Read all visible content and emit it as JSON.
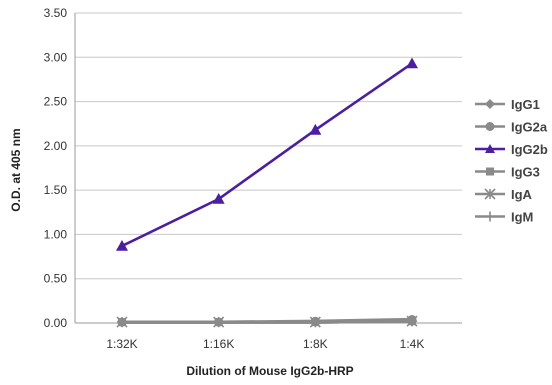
{
  "chart_data": {
    "type": "line",
    "title": "",
    "xlabel": "Dilution of Mouse IgG2b-HRP",
    "ylabel": "O.D. at 405 nm",
    "categories": [
      "1:32K",
      "1:16K",
      "1:8K",
      "1:4K"
    ],
    "ylim": [
      0,
      3.5
    ],
    "yticks": [
      "0.00",
      "0.50",
      "1.00",
      "1.50",
      "2.00",
      "2.50",
      "3.00",
      "3.50"
    ],
    "grid": "horizontal",
    "legend_position": "right",
    "series": [
      {
        "name": "IgG1",
        "values": [
          0.01,
          0.01,
          0.01,
          0.02
        ],
        "color": "#8a8a8a",
        "marker": "diamond"
      },
      {
        "name": "IgG2a",
        "values": [
          0.01,
          0.01,
          0.02,
          0.04
        ],
        "color": "#8a8a8a",
        "marker": "circle"
      },
      {
        "name": "IgG2b",
        "values": [
          0.87,
          1.4,
          2.18,
          2.93
        ],
        "color": "#4b1fa0",
        "marker": "triangle"
      },
      {
        "name": "IgG3",
        "values": [
          0.01,
          0.01,
          0.01,
          0.02
        ],
        "color": "#8a8a8a",
        "marker": "square"
      },
      {
        "name": "IgA",
        "values": [
          0.01,
          0.01,
          0.01,
          0.02
        ],
        "color": "#8a8a8a",
        "marker": "star"
      },
      {
        "name": "IgM",
        "values": [
          0.01,
          0.01,
          0.01,
          0.02
        ],
        "color": "#8a8a8a",
        "marker": "plus"
      }
    ]
  }
}
